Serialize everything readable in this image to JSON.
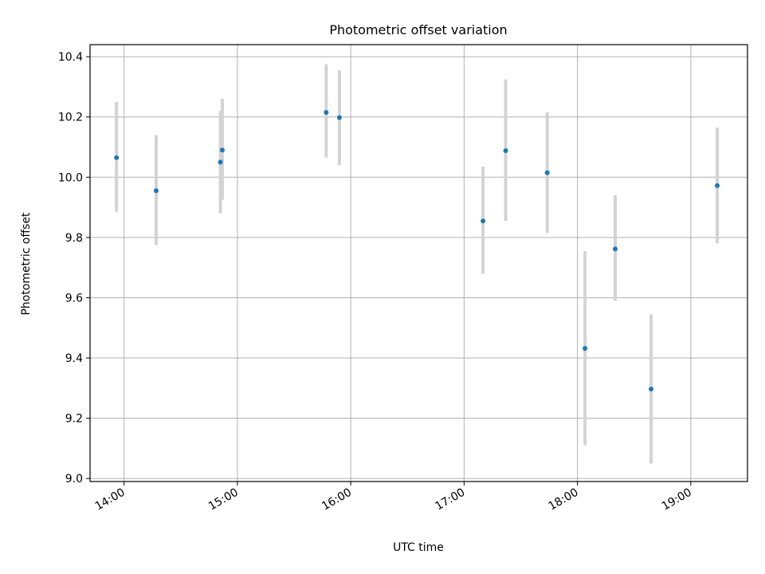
{
  "chart_data": {
    "type": "scatter",
    "title": "Photometric offset variation",
    "xlabel": "UTC time",
    "ylabel": "Photometric offset",
    "x_ticks": [
      "14:00",
      "15:00",
      "16:00",
      "17:00",
      "18:00",
      "19:00"
    ],
    "y_ticks": [
      "9.0",
      "9.2",
      "9.4",
      "9.6",
      "9.8",
      "10.0",
      "10.2",
      "10.4"
    ],
    "xlim": [
      "13:42",
      "19:30"
    ],
    "ylim": [
      8.99,
      10.44
    ],
    "grid": true,
    "point_color": "#1f77b4",
    "errorbar_color": "#d3d3d3",
    "points": [
      {
        "x": "13:56",
        "y": 10.065,
        "lo": 9.885,
        "hi": 10.25
      },
      {
        "x": "14:17",
        "y": 9.955,
        "lo": 9.775,
        "hi": 10.14
      },
      {
        "x": "14:51",
        "y": 10.05,
        "lo": 9.88,
        "hi": 10.22
      },
      {
        "x": "14:52",
        "y": 10.09,
        "lo": 9.925,
        "hi": 10.26
      },
      {
        "x": "15:47",
        "y": 10.215,
        "lo": 10.065,
        "hi": 10.375
      },
      {
        "x": "15:54",
        "y": 10.198,
        "lo": 10.04,
        "hi": 10.355
      },
      {
        "x": "17:10",
        "y": 9.855,
        "lo": 9.68,
        "hi": 10.035
      },
      {
        "x": "17:22",
        "y": 10.088,
        "lo": 9.855,
        "hi": 10.325
      },
      {
        "x": "17:44",
        "y": 10.015,
        "lo": 9.815,
        "hi": 10.215
      },
      {
        "x": "18:04",
        "y": 9.432,
        "lo": 9.11,
        "hi": 9.755
      },
      {
        "x": "18:20",
        "y": 9.762,
        "lo": 9.59,
        "hi": 9.94
      },
      {
        "x": "18:39",
        "y": 9.297,
        "lo": 9.05,
        "hi": 9.545
      },
      {
        "x": "19:14",
        "y": 9.972,
        "lo": 9.78,
        "hi": 10.165
      }
    ]
  }
}
